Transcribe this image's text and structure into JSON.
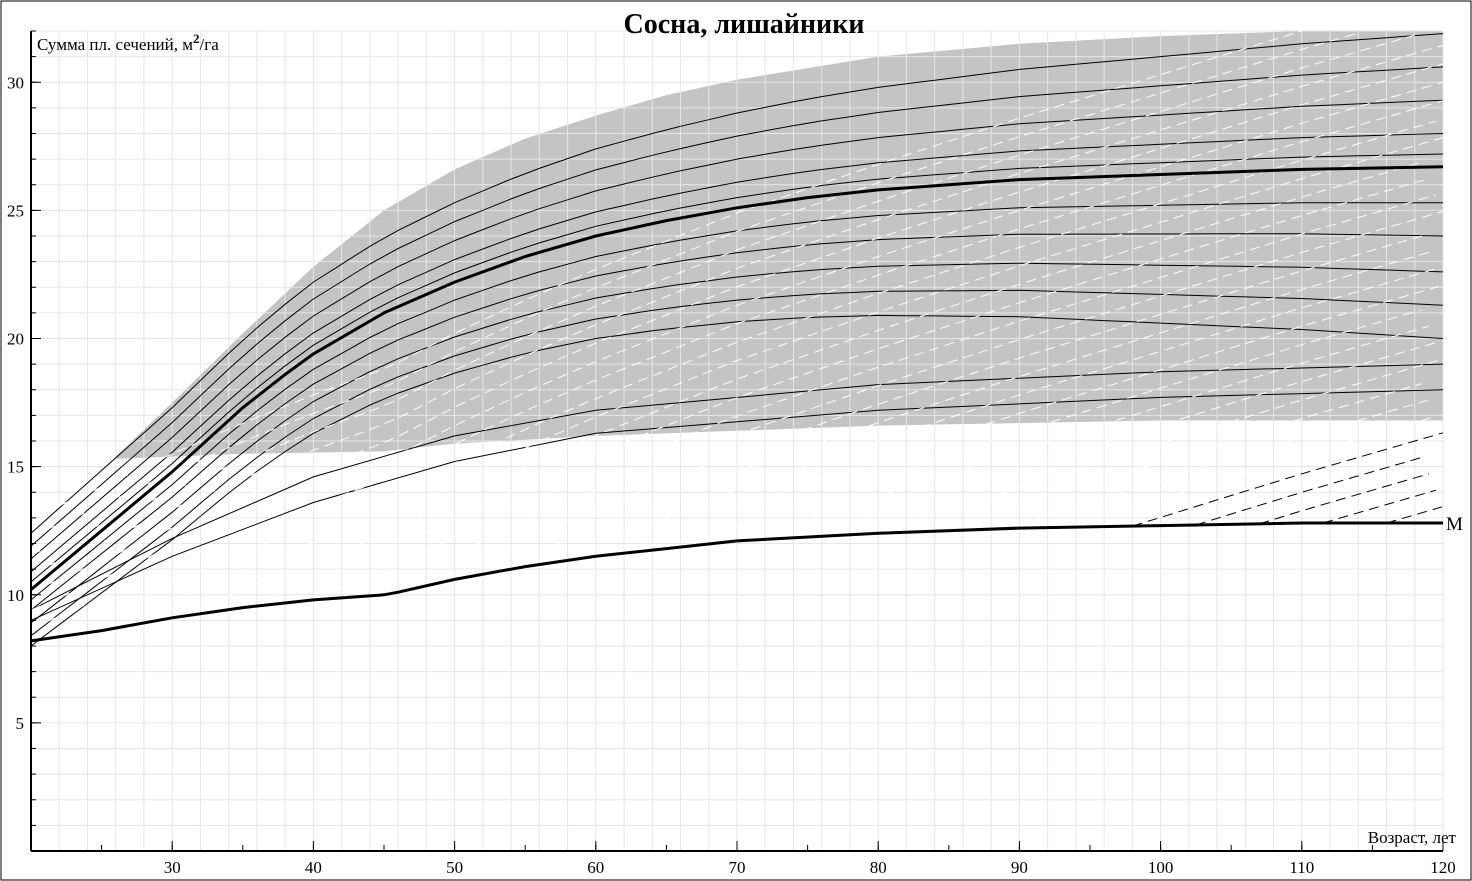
{
  "chart_data": {
    "type": "line",
    "title": "Сосна, лишайники",
    "ylabel_text": "Сумма пл. сечений, м",
    "ylabel_sup": "2",
    "ylabel_unit": "/га",
    "xlabel": "Возраст, лет",
    "xlim": [
      20,
      120
    ],
    "ylim": [
      0,
      32
    ],
    "x_ticks": [
      30,
      40,
      50,
      60,
      70,
      80,
      90,
      100,
      110,
      120
    ],
    "y_ticks": [
      5,
      10,
      15,
      20,
      25,
      30
    ],
    "grid": true,
    "colors": {
      "band": "#c4c4c4",
      "grid_minor": "#e6e6e6",
      "line": "#000000"
    },
    "shaded_band": {
      "upper": [
        [
          26,
          15.4
        ],
        [
          30,
          17.5
        ],
        [
          35,
          20.2
        ],
        [
          40,
          22.8
        ],
        [
          45,
          25.0
        ],
        [
          50,
          26.6
        ],
        [
          55,
          27.8
        ],
        [
          60,
          28.7
        ],
        [
          65,
          29.5
        ],
        [
          70,
          30.1
        ],
        [
          80,
          31.0
        ],
        [
          90,
          31.5
        ],
        [
          100,
          31.8
        ],
        [
          110,
          32.0
        ],
        [
          120,
          32.0
        ]
      ],
      "lower": [
        [
          26,
          15.3
        ],
        [
          35,
          15.5
        ],
        [
          45,
          15.6
        ],
        [
          50,
          15.9
        ],
        [
          60,
          16.2
        ],
        [
          70,
          16.4
        ],
        [
          80,
          16.6
        ],
        [
          90,
          16.7
        ],
        [
          100,
          16.8
        ],
        [
          110,
          16.8
        ],
        [
          120,
          16.8
        ]
      ]
    },
    "series": [
      {
        "label": "",
        "style": "bold",
        "points": [
          [
            20,
            10.2
          ],
          [
            25,
            12.5
          ],
          [
            30,
            14.8
          ],
          [
            35,
            17.3
          ],
          [
            38,
            18.6
          ],
          [
            40,
            19.4
          ],
          [
            45,
            21.0
          ],
          [
            50,
            22.2
          ],
          [
            55,
            23.2
          ],
          [
            60,
            24.0
          ],
          [
            65,
            24.6
          ],
          [
            70,
            25.1
          ],
          [
            75,
            25.5
          ],
          [
            80,
            25.8
          ],
          [
            85,
            26.0
          ],
          [
            90,
            26.2
          ],
          [
            100,
            26.4
          ],
          [
            110,
            26.6
          ],
          [
            120,
            26.7
          ]
        ]
      },
      {
        "label": "М",
        "style": "bold",
        "points": [
          [
            20,
            8.2
          ],
          [
            25,
            8.6
          ],
          [
            30,
            9.1
          ],
          [
            35,
            9.5
          ],
          [
            40,
            9.8
          ],
          [
            45,
            10.0
          ],
          [
            46,
            10.1
          ],
          [
            50,
            10.6
          ],
          [
            55,
            11.1
          ],
          [
            60,
            11.5
          ],
          [
            65,
            11.8
          ],
          [
            70,
            12.1
          ],
          [
            80,
            12.4
          ],
          [
            90,
            12.6
          ],
          [
            100,
            12.7
          ],
          [
            110,
            12.8
          ],
          [
            120,
            12.8
          ]
        ]
      }
    ]
  }
}
